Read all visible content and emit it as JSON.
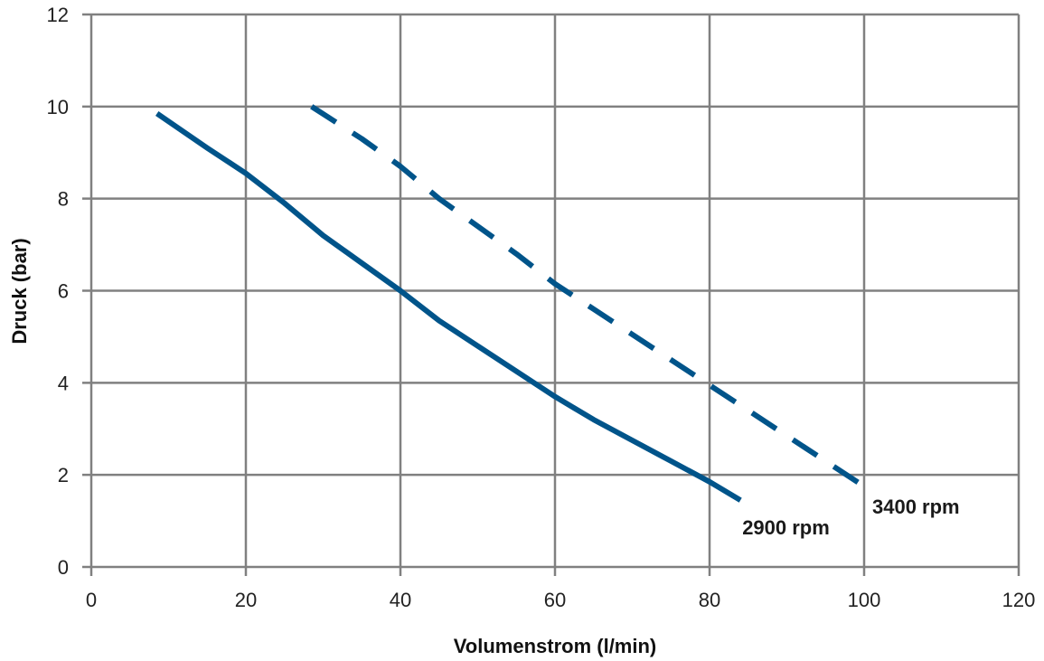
{
  "chart_data": {
    "type": "line",
    "xlabel": "Volumenstrom (l/min)",
    "ylabel": "Druck (bar)",
    "xlim": [
      0,
      120
    ],
    "ylim": [
      0,
      12
    ],
    "xticks": [
      0,
      20,
      40,
      60,
      80,
      100,
      120
    ],
    "yticks": [
      0,
      2,
      4,
      6,
      8,
      10,
      12
    ],
    "grid": true,
    "colors": {
      "series": "#00548a",
      "grid": "#808080",
      "background": "#ffffff"
    },
    "series": [
      {
        "name": "2900 rpm",
        "line_style": "solid",
        "x": [
          8.5,
          15,
          20,
          25,
          30,
          35,
          40,
          45,
          50,
          55,
          60,
          65,
          70,
          75,
          80,
          84
        ],
        "y": [
          9.85,
          9.1,
          8.55,
          7.9,
          7.2,
          6.6,
          6.0,
          5.35,
          4.8,
          4.25,
          3.7,
          3.2,
          2.75,
          2.3,
          1.85,
          1.45
        ]
      },
      {
        "name": "3400 rpm",
        "line_style": "dashed",
        "x": [
          28.5,
          35,
          40,
          45,
          50,
          55,
          60,
          65,
          70,
          75,
          80,
          85,
          90,
          95,
          100
        ],
        "y": [
          10.0,
          9.3,
          8.7,
          8.0,
          7.4,
          6.8,
          6.15,
          5.6,
          5.05,
          4.5,
          3.95,
          3.4,
          2.85,
          2.3,
          1.75
        ]
      }
    ]
  }
}
